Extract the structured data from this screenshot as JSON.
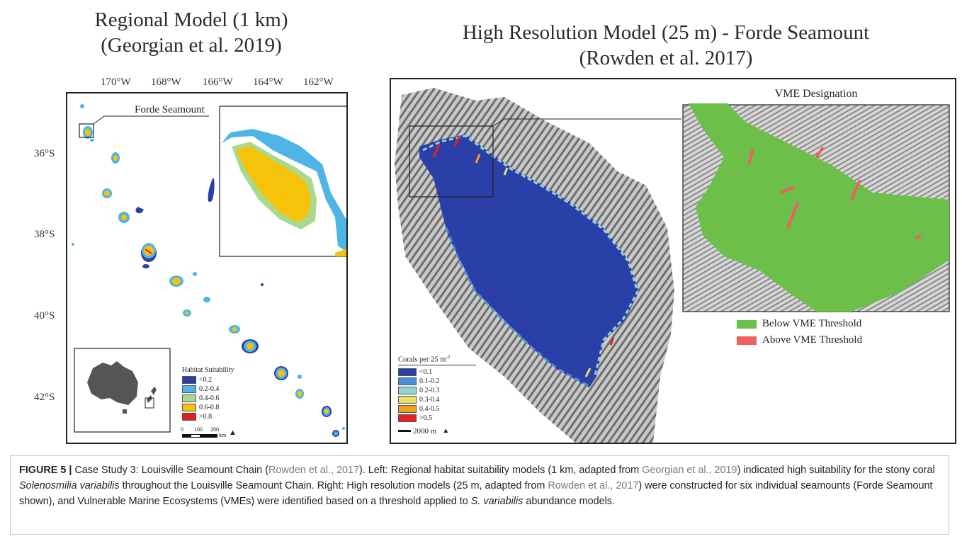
{
  "left_panel": {
    "title_line1": "Regional Model (1 km)",
    "title_line2": "(Georgian et al. 2019)",
    "lon_labels": [
      "170°W",
      "168°W",
      "166°W",
      "164°W",
      "162°W"
    ],
    "lat_labels": [
      "36°S",
      "38°S",
      "40°S",
      "42°S"
    ],
    "callout_label": "Forde Seamount",
    "legend_title": "Habitat Suitability",
    "legend": [
      {
        "label": "<0.2",
        "color": "#2b3fa8"
      },
      {
        "label": "0.2-0.4",
        "color": "#4fb4e6"
      },
      {
        "label": "0.4-0.6",
        "color": "#a9d98f"
      },
      {
        "label": "0.6-0.8",
        "color": "#f7c20a"
      },
      {
        "label": ">0.8",
        "color": "#e02020"
      }
    ],
    "scale_ticks": [
      "0",
      "100",
      "200"
    ],
    "scale_unit": "km"
  },
  "right_panel": {
    "title_line1": "High Resolution Model (25 m) - Forde Seamount",
    "title_line2": "(Rowden et al. 2017)",
    "inset_title": "VME Designation",
    "vme_legend": [
      {
        "label": "Below VME Threshold",
        "color": "#6cc04a"
      },
      {
        "label": "Above VME Threshold",
        "color": "#f06060"
      }
    ],
    "legend_title": "Corals per 25 m",
    "legend_title_sup": "-2",
    "legend": [
      {
        "label": "<0.1",
        "color": "#2b3fa8"
      },
      {
        "label": "0.1-0.2",
        "color": "#4d8fd6"
      },
      {
        "label": "0.2-0.3",
        "color": "#8fd4cf"
      },
      {
        "label": "0.3-0.4",
        "color": "#e6e06a"
      },
      {
        "label": "0.4-0.5",
        "color": "#f4a11e"
      },
      {
        "label": ">0.5",
        "color": "#e82020"
      }
    ],
    "scale_label": "2000 m"
  },
  "caption": {
    "label": "FIGURE 5 |",
    "t1": " Case Study 3: Louisville Seamount Chain (",
    "r1": "Rowden et al., 2017",
    "t2": "). Left: Regional habitat suitability models (1 km, adapted from ",
    "r2": "Georgian et al., 2019",
    "t3": ") indicated high suitability for the stony coral ",
    "i1": "Solenosmilia variabilis",
    "t4": " throughout the Louisville Seamount Chain. Right: High resolution models (25 m, adapted from ",
    "r3": "Rowden et al., 2017",
    "t5": ") were constructed for six individual seamounts (Forde Seamount shown), and Vulnerable Marine Ecosystems (VMEs) were identified based on a threshold applied to ",
    "i2": "S. variabilis",
    "t6": " abundance models."
  }
}
